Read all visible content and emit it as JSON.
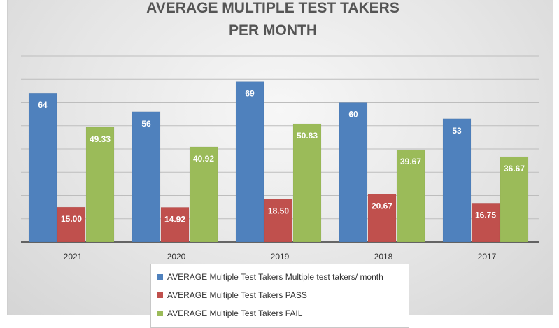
{
  "chart_data": {
    "type": "bar",
    "title_lines": [
      "AVERAGE MULTIPLE TEST TAKERS",
      "PER MONTH"
    ],
    "categories": [
      "2021",
      "2020",
      "2019",
      "2018",
      "2017"
    ],
    "series": [
      {
        "name": "AVERAGE Multiple Test Takers Multiple test takers/ month",
        "color": "#4f81bd",
        "values": [
          64,
          56,
          69,
          60,
          53
        ],
        "labels": [
          "64",
          "56",
          "69",
          "60",
          "53"
        ]
      },
      {
        "name": "AVERAGE Multiple Test Takers PASS",
        "color": "#c0504d",
        "values": [
          15.0,
          14.92,
          18.5,
          20.67,
          16.75
        ],
        "labels": [
          "15.00",
          "14.92",
          "18.50",
          "20.67",
          "16.75"
        ]
      },
      {
        "name": "AVERAGE Multiple Test Takers FAIL",
        "color": "#9bbb59",
        "values": [
          49.33,
          40.92,
          50.83,
          39.67,
          36.67
        ],
        "labels": [
          "49.33",
          "40.92",
          "50.83",
          "39.67",
          "36.67"
        ]
      }
    ],
    "ylim": [
      0,
      80
    ],
    "grid": true,
    "legend_position": "bottom"
  }
}
